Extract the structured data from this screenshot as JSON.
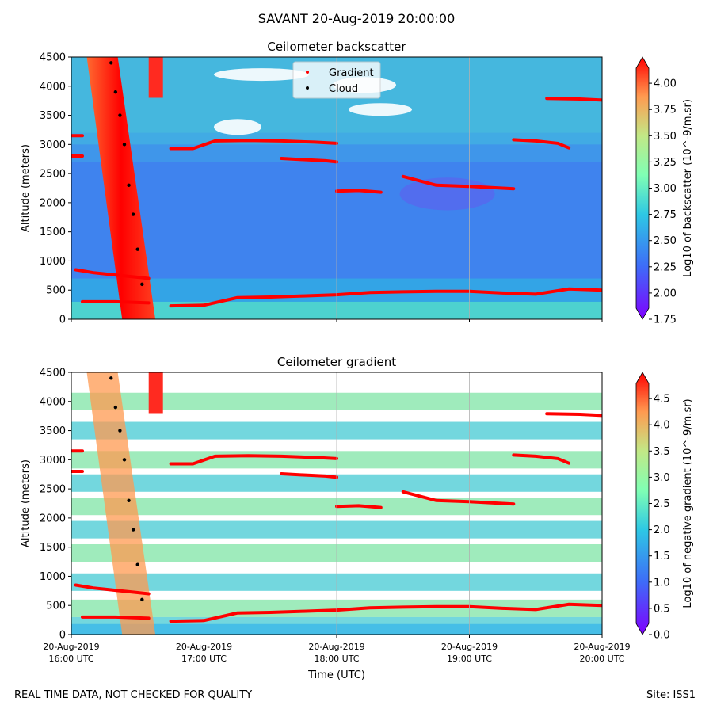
{
  "figure_title": "SAVANT 20-Aug-2019 20:00:00",
  "footer": {
    "note": "REAL TIME DATA, NOT CHECKED FOR QUALITY",
    "site": "Site: ISS1"
  },
  "chart_data": [
    {
      "type": "heatmap",
      "title": "Ceilometer backscatter",
      "xlabel": "",
      "ylabel": "Altitude (meters)",
      "x_range_utc": [
        "2019-08-20 16:00",
        "2019-08-20 20:00"
      ],
      "x_ticks": [
        "20-Aug-2019 16:00 UTC",
        "20-Aug-2019 17:00 UTC",
        "20-Aug-2019 18:00 UTC",
        "20-Aug-2019 19:00 UTC",
        "20-Aug-2019 20:00 UTC"
      ],
      "x_ticklabels_visible": false,
      "ylim": [
        0,
        4500
      ],
      "y_ticks": [
        0,
        500,
        1000,
        1500,
        2000,
        2500,
        3000,
        3500,
        4000,
        4500
      ],
      "grid": "vertical at hourly ticks",
      "colorbar": {
        "label": "Log10 of backscatter (10^-9/m.sr)",
        "range": [
          1.75,
          4.25
        ],
        "ticks": [
          1.75,
          2.0,
          2.25,
          2.5,
          2.75,
          3.0,
          3.25,
          3.5,
          3.75,
          4.0
        ],
        "tick_labels": [
          "1.75",
          "2.00",
          "2.25",
          "2.50",
          "2.75",
          "3.00",
          "3.25",
          "3.50",
          "3.75",
          "4.00"
        ],
        "colormap": "rainbow",
        "extend": "both"
      },
      "legend": {
        "placement": "top-center",
        "entries": [
          {
            "label": "Gradient",
            "color": "#ff0000"
          },
          {
            "label": "Cloud",
            "color": "#000000"
          }
        ]
      },
      "cloud_plume": {
        "description": "near-vertical plume of high backscatter",
        "time_span_utc": [
          "16:15",
          "16:35"
        ],
        "altitude_span_m": [
          0,
          4500
        ]
      },
      "gradient_series": [
        {
          "times_utc": [
            "16:02",
            "16:10",
            "16:20",
            "16:30",
            "16:35"
          ],
          "altitudes_m": [
            850,
            800,
            760,
            720,
            700
          ]
        },
        {
          "times_utc": [
            "16:05",
            "16:20",
            "16:35"
          ],
          "altitudes_m": [
            300,
            300,
            280
          ]
        },
        {
          "times_utc": [
            "16:45",
            "17:00",
            "17:15",
            "17:30",
            "17:45",
            "18:00",
            "18:15",
            "18:30",
            "18:45",
            "19:00",
            "19:15",
            "19:30",
            "19:45",
            "20:00"
          ],
          "altitudes_m": [
            230,
            240,
            370,
            380,
            400,
            420,
            460,
            470,
            480,
            480,
            450,
            430,
            520,
            500
          ]
        },
        {
          "times_utc": [
            "16:00",
            "16:05"
          ],
          "altitudes_m": [
            2800,
            2800
          ]
        },
        {
          "times_utc": [
            "16:00",
            "16:05"
          ],
          "altitudes_m": [
            3150,
            3150
          ]
        },
        {
          "times_utc": [
            "16:45",
            "16:55",
            "17:05",
            "17:20",
            "17:35",
            "17:50",
            "18:00"
          ],
          "altitudes_m": [
            2930,
            2930,
            3060,
            3070,
            3060,
            3040,
            3020
          ]
        },
        {
          "times_utc": [
            "17:35",
            "17:45",
            "17:55",
            "18:00"
          ],
          "altitudes_m": [
            2760,
            2740,
            2720,
            2700
          ]
        },
        {
          "times_utc": [
            "18:00",
            "18:10",
            "18:20"
          ],
          "altitudes_m": [
            2200,
            2210,
            2180
          ]
        },
        {
          "times_utc": [
            "18:30",
            "18:45",
            "19:00",
            "19:15",
            "19:20"
          ],
          "altitudes_m": [
            2450,
            2300,
            2280,
            2250,
            2240
          ]
        },
        {
          "times_utc": [
            "19:20",
            "19:30",
            "19:40",
            "19:45"
          ],
          "altitudes_m": [
            3080,
            3060,
            3020,
            2940
          ]
        },
        {
          "times_utc": [
            "19:35",
            "19:50",
            "20:00"
          ],
          "altitudes_m": [
            3790,
            3780,
            3760
          ]
        }
      ],
      "cloud_series": [
        {
          "times_utc": [
            "16:18",
            "16:20",
            "16:22",
            "16:24",
            "16:26",
            "16:28",
            "16:30",
            "16:32"
          ],
          "altitudes_m": [
            4400,
            3900,
            3500,
            3000,
            2300,
            1800,
            1200,
            600
          ]
        }
      ]
    },
    {
      "type": "heatmap",
      "title": "Ceilometer gradient",
      "xlabel": "Time (UTC)",
      "ylabel": "Altitude (meters)",
      "x_range_utc": [
        "2019-08-20 16:00",
        "2019-08-20 20:00"
      ],
      "x_ticks": [
        "20-Aug-2019 16:00 UTC",
        "20-Aug-2019 17:00 UTC",
        "20-Aug-2019 18:00 UTC",
        "20-Aug-2019 19:00 UTC",
        "20-Aug-2019 20:00 UTC"
      ],
      "x_tick_labels": [
        [
          "20-Aug-2019",
          "16:00 UTC"
        ],
        [
          "20-Aug-2019",
          "17:00 UTC"
        ],
        [
          "20-Aug-2019",
          "18:00 UTC"
        ],
        [
          "20-Aug-2019",
          "19:00 UTC"
        ],
        [
          "20-Aug-2019",
          "20:00 UTC"
        ]
      ],
      "ylim": [
        0,
        4500
      ],
      "y_ticks": [
        0,
        500,
        1000,
        1500,
        2000,
        2500,
        3000,
        3500,
        4000,
        4500
      ],
      "grid": "vertical at hourly ticks",
      "colorbar": {
        "label": "Log10 of negative gradient (10^-9/m.sr)",
        "range": [
          0.0,
          5.0
        ],
        "ticks": [
          0.0,
          0.5,
          1.0,
          1.5,
          2.0,
          2.5,
          3.0,
          3.5,
          4.0,
          4.5
        ],
        "tick_labels": [
          "0.0",
          "0.5",
          "1.0",
          "1.5",
          "2.0",
          "2.5",
          "3.0",
          "3.5",
          "4.0",
          "4.5"
        ],
        "colormap": "rainbow",
        "extend": "both"
      },
      "bands_altitudes_m": [
        4000,
        3500,
        3000,
        2600,
        2200,
        1800,
        1400,
        900,
        450,
        150
      ],
      "gradient_series": [
        {
          "times_utc": [
            "16:02",
            "16:10",
            "16:20",
            "16:30",
            "16:35"
          ],
          "altitudes_m": [
            850,
            800,
            760,
            720,
            700
          ]
        },
        {
          "times_utc": [
            "16:05",
            "16:20",
            "16:35"
          ],
          "altitudes_m": [
            300,
            300,
            280
          ]
        },
        {
          "times_utc": [
            "16:45",
            "17:00",
            "17:15",
            "17:30",
            "17:45",
            "18:00",
            "18:15",
            "18:30",
            "18:45",
            "19:00",
            "19:15",
            "19:30",
            "19:45",
            "20:00"
          ],
          "altitudes_m": [
            230,
            240,
            370,
            380,
            400,
            420,
            460,
            470,
            480,
            480,
            450,
            430,
            520,
            500
          ]
        },
        {
          "times_utc": [
            "16:00",
            "16:05"
          ],
          "altitudes_m": [
            2800,
            2800
          ]
        },
        {
          "times_utc": [
            "16:00",
            "16:05"
          ],
          "altitudes_m": [
            3150,
            3150
          ]
        },
        {
          "times_utc": [
            "16:45",
            "16:55",
            "17:05",
            "17:20",
            "17:35",
            "17:50",
            "18:00"
          ],
          "altitudes_m": [
            2930,
            2930,
            3060,
            3070,
            3060,
            3040,
            3020
          ]
        },
        {
          "times_utc": [
            "17:35",
            "17:45",
            "17:55",
            "18:00"
          ],
          "altitudes_m": [
            2760,
            2740,
            2720,
            2700
          ]
        },
        {
          "times_utc": [
            "18:00",
            "18:10",
            "18:20"
          ],
          "altitudes_m": [
            2200,
            2210,
            2180
          ]
        },
        {
          "times_utc": [
            "18:30",
            "18:45",
            "19:00",
            "19:15",
            "19:20"
          ],
          "altitudes_m": [
            2450,
            2300,
            2280,
            2250,
            2240
          ]
        },
        {
          "times_utc": [
            "19:20",
            "19:30",
            "19:40",
            "19:45"
          ],
          "altitudes_m": [
            3080,
            3060,
            3020,
            2940
          ]
        },
        {
          "times_utc": [
            "19:35",
            "19:50",
            "20:00"
          ],
          "altitudes_m": [
            3790,
            3780,
            3760
          ]
        }
      ],
      "cloud_series": [
        {
          "times_utc": [
            "16:18",
            "16:20",
            "16:22",
            "16:24",
            "16:26",
            "16:28",
            "16:30",
            "16:32"
          ],
          "altitudes_m": [
            4400,
            3900,
            3500,
            3000,
            2300,
            1800,
            1200,
            600
          ]
        }
      ]
    }
  ]
}
